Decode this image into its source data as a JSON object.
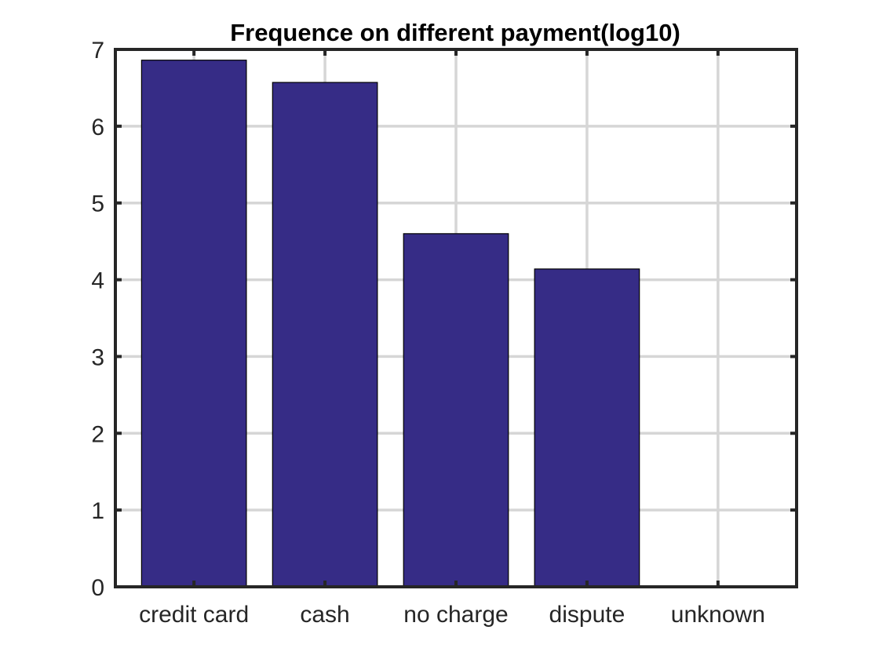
{
  "chart_data": {
    "type": "bar",
    "title": "Frequence on different payment(log10)",
    "xlabel": "",
    "ylabel": "",
    "categories": [
      "credit card",
      "cash",
      "no charge",
      "dispute",
      "unknown"
    ],
    "values": [
      6.86,
      6.57,
      4.6,
      4.14,
      0
    ],
    "ylim": [
      0,
      7
    ],
    "yticks": [
      "0",
      "1",
      "2",
      "3",
      "4",
      "5",
      "6",
      "7"
    ],
    "grid": true,
    "legend": "none",
    "colors": {
      "bar": "#362c86",
      "edge": "#000000",
      "grid": "#d6d6d6",
      "axes": "#262626"
    }
  }
}
